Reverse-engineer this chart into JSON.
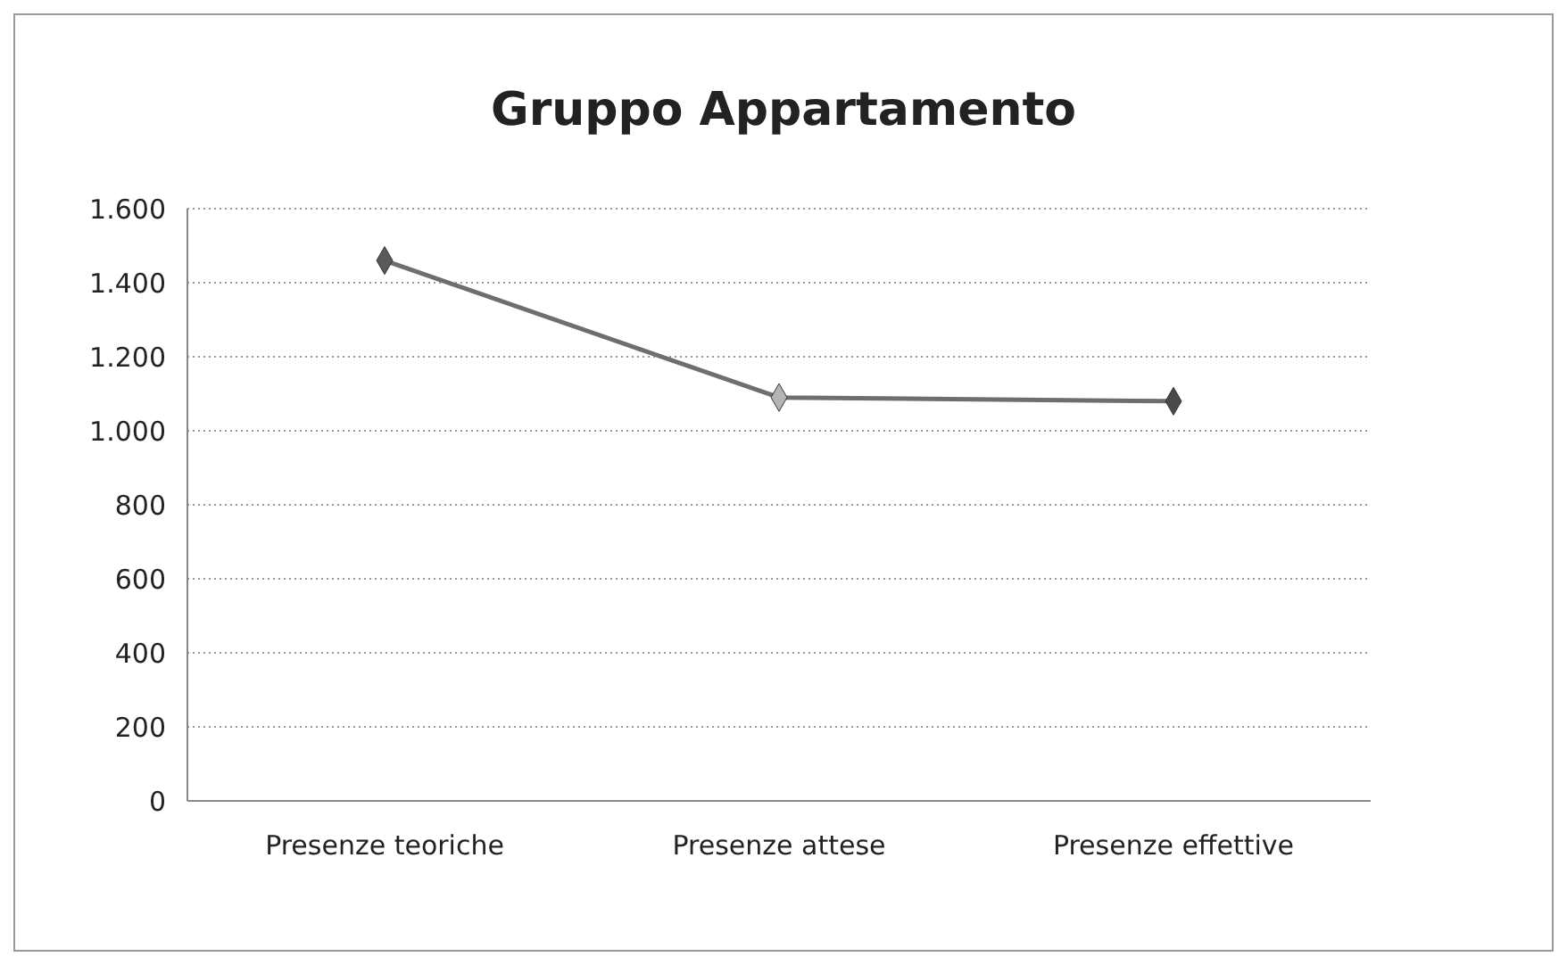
{
  "chart_data": {
    "type": "line",
    "title": "Gruppo Appartamento",
    "categories": [
      "Presenze teoriche",
      "Presenze attese",
      "Presenze effettive"
    ],
    "series": [
      {
        "color": "#6e6e6e",
        "colors": [
          "#5a5a5a",
          "#b4b4b4",
          "#4a4a4a"
        ],
        "values": [
          1460,
          1090,
          1080
        ]
      }
    ],
    "ylim": [
      0,
      1600
    ],
    "yticks": [
      {
        "value": 0,
        "label": "0"
      },
      {
        "value": 200,
        "label": "200"
      },
      {
        "value": 400,
        "label": "400"
      },
      {
        "value": 600,
        "label": "600"
      },
      {
        "value": 800,
        "label": "800"
      },
      {
        "value": 1000,
        "label": "1.000"
      },
      {
        "value": 1200,
        "label": "1.200"
      },
      {
        "value": 1400,
        "label": "1.400"
      },
      {
        "value": 1600,
        "label": "1.600"
      }
    ],
    "grid": "y",
    "marker": "diamond"
  }
}
